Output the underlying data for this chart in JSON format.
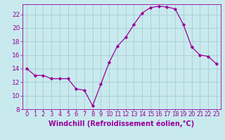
{
  "x": [
    0,
    1,
    2,
    3,
    4,
    5,
    6,
    7,
    8,
    9,
    10,
    11,
    12,
    13,
    14,
    15,
    16,
    17,
    18,
    19,
    20,
    21,
    22,
    23
  ],
  "y": [
    14,
    13,
    13,
    12.5,
    12.5,
    12.5,
    11,
    10.8,
    8.5,
    11.7,
    14.9,
    17.3,
    18.6,
    20.5,
    22.2,
    23,
    23.2,
    23.1,
    22.8,
    20.5,
    17.2,
    16,
    15.8,
    14.7
  ],
  "line_color": "#990099",
  "marker": "D",
  "marker_size": 2.2,
  "bg_color": "#c8eaee",
  "grid_color": "#a8cdd4",
  "xlabel": "Windchill (Refroidissement éolien,°C)",
  "xlim": [
    -0.5,
    23.5
  ],
  "ylim": [
    8,
    23.5
  ],
  "yticks": [
    8,
    10,
    12,
    14,
    16,
    18,
    20,
    22
  ],
  "xticks": [
    0,
    1,
    2,
    3,
    4,
    5,
    6,
    7,
    8,
    9,
    10,
    11,
    12,
    13,
    14,
    15,
    16,
    17,
    18,
    19,
    20,
    21,
    22,
    23
  ],
  "tick_color": "#990099",
  "label_color": "#990099",
  "xlabel_fontsize": 7.0,
  "tick_fontsize": 6.0,
  "ytick_fontsize": 6.5
}
